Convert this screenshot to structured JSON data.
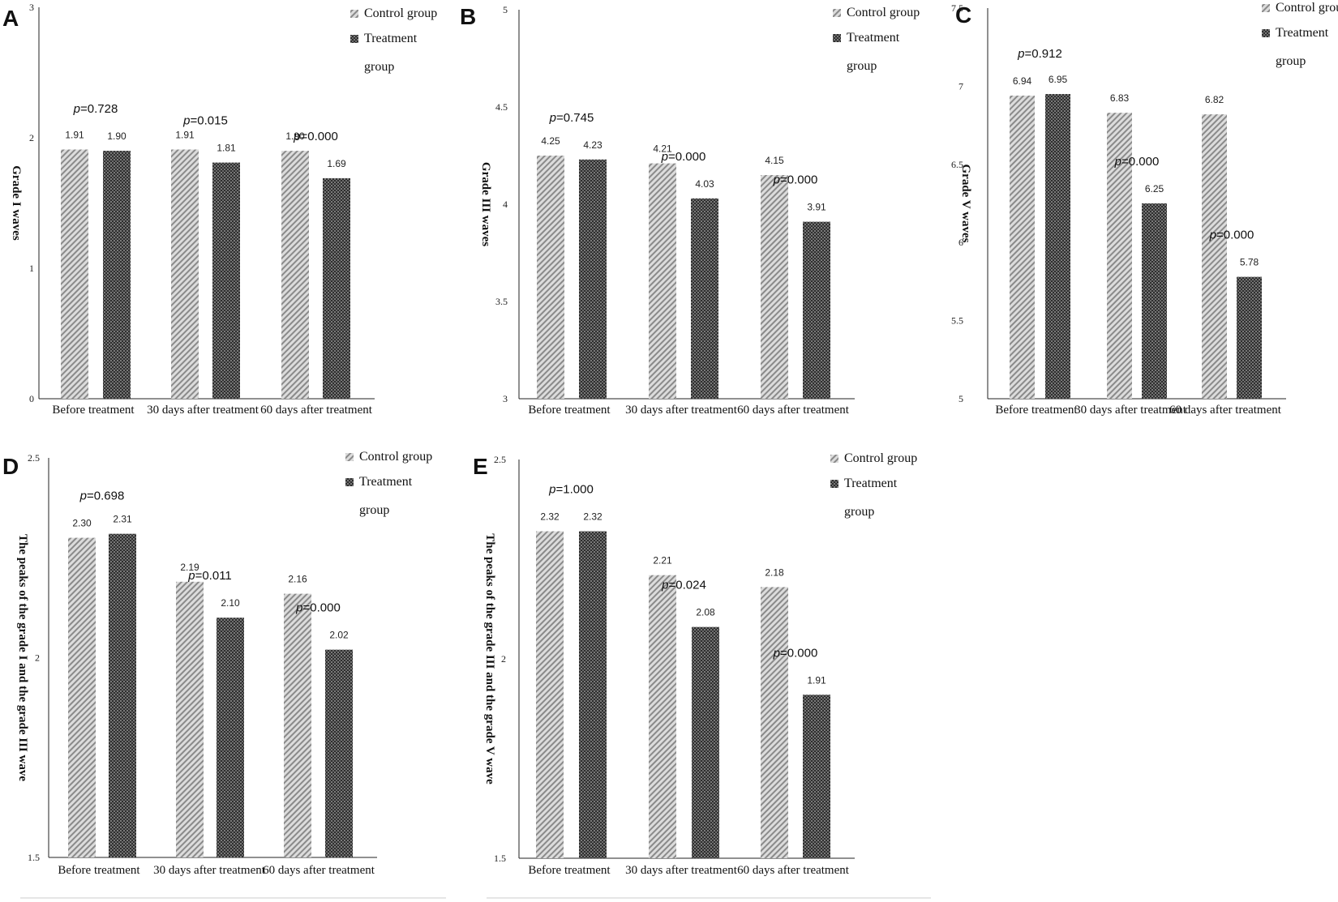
{
  "colors": {
    "control": "#c4c4c4",
    "treatment": "#3d3d3d",
    "axis": "#222222"
  },
  "chart_data": [
    {
      "panel": "A",
      "type": "bar",
      "ylabel": "Grade I waves",
      "ylim": [
        0,
        3
      ],
      "yticks": [
        "0",
        "1",
        "2",
        "3"
      ],
      "categories": [
        "Before treatment",
        "30 days after treatment",
        "60 days after treatment"
      ],
      "series": [
        {
          "name": "Control group",
          "values": [
            1.91,
            1.91,
            1.9
          ],
          "labels": [
            "1.91",
            "1.91",
            "1.90"
          ]
        },
        {
          "name": "Treatment group",
          "values": [
            1.9,
            1.81,
            1.69
          ],
          "labels": [
            "1.90",
            "1.81",
            "1.69"
          ]
        }
      ],
      "p_values": [
        "0.728",
        "0.015",
        "0.000"
      ],
      "legend": {
        "control": "Control group",
        "treatment_line1": "Treatment",
        "treatment_line2": "group",
        "position": "top-right"
      }
    },
    {
      "panel": "B",
      "type": "bar",
      "ylabel": "Grade III waves",
      "ylim": [
        3,
        5
      ],
      "yticks": [
        "3",
        "3.5",
        "4",
        "4.5",
        "5"
      ],
      "categories": [
        "Before treatment",
        "30 days after treatment",
        "60 days after treatment"
      ],
      "series": [
        {
          "name": "Control group",
          "values": [
            4.25,
            4.21,
            4.15
          ],
          "labels": [
            "4.25",
            "4.21",
            "4.15"
          ]
        },
        {
          "name": "Treatment group",
          "values": [
            4.23,
            4.03,
            3.91
          ],
          "labels": [
            "4.23",
            "4.03",
            "3.91"
          ]
        }
      ],
      "p_values": [
        "0.745",
        "0.000",
        "0.000"
      ],
      "legend": {
        "control": "Control group",
        "treatment_line1": "Treatment",
        "treatment_line2": "group",
        "position": "top-right"
      }
    },
    {
      "panel": "C",
      "type": "bar",
      "ylabel": "Grade V waves",
      "ylim": [
        5,
        7.5
      ],
      "yticks": [
        "5",
        "5.5",
        "6",
        "6.5",
        "7",
        "7.5"
      ],
      "categories": [
        "Before treatment",
        "30 days after treatment",
        "60 days after treatment"
      ],
      "series": [
        {
          "name": "Control group",
          "values": [
            6.94,
            6.83,
            6.82
          ],
          "labels": [
            "6.94",
            "6.83",
            "6.82"
          ]
        },
        {
          "name": "Treatment group",
          "values": [
            6.95,
            6.25,
            5.78
          ],
          "labels": [
            "6.95",
            "6.25",
            "5.78"
          ]
        }
      ],
      "p_values": [
        "0.912",
        "0.000",
        "0.000"
      ],
      "legend": {
        "control": "Control group",
        "treatment_line1": "Treatment",
        "treatment_line2": "group",
        "position": "top-right"
      }
    },
    {
      "panel": "D",
      "type": "bar",
      "ylabel": "The peaks of the grade I and the grade III wave",
      "ylim": [
        1.5,
        2.5
      ],
      "yticks": [
        "1.5",
        "2",
        "2.5"
      ],
      "categories": [
        "Before treatment",
        "30 days after treatment",
        "60 days after treatment"
      ],
      "series": [
        {
          "name": "Control group",
          "values": [
            2.3,
            2.19,
            2.16
          ],
          "labels": [
            "2.30",
            "2.19",
            "2.16"
          ]
        },
        {
          "name": "Treatment group",
          "values": [
            2.31,
            2.1,
            2.02
          ],
          "labels": [
            "2.31",
            "2.10",
            "2.02"
          ]
        }
      ],
      "p_values": [
        "0.698",
        "0.011",
        "0.000"
      ],
      "legend": {
        "control": "Control group",
        "treatment_line1": "Treatment",
        "treatment_line2": "group",
        "position": "top-right"
      }
    },
    {
      "panel": "E",
      "type": "bar",
      "ylabel": "The peaks of the grade III and the grade V wave",
      "ylim": [
        1.5,
        2.5
      ],
      "yticks": [
        "1.5",
        "2",
        "2.5"
      ],
      "categories": [
        "Before treatment",
        "30 days after treatment",
        "60 days after treatment"
      ],
      "series": [
        {
          "name": "Control group",
          "values": [
            2.32,
            2.21,
            2.18
          ],
          "labels": [
            "2.32",
            "2.21",
            "2.18"
          ]
        },
        {
          "name": "Treatment group",
          "values": [
            2.32,
            2.08,
            1.91
          ],
          "labels": [
            "2.32",
            "2.08",
            "1.91"
          ]
        }
      ],
      "p_values": [
        "1.000",
        "0.024",
        "0.000"
      ],
      "legend": {
        "control": "Control group",
        "treatment_line1": "Treatment",
        "treatment_line2": "group",
        "position": "top-right"
      }
    }
  ]
}
